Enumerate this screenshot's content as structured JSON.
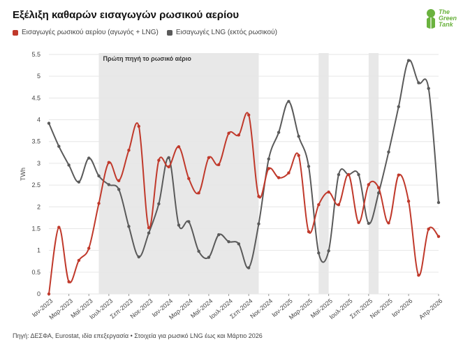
{
  "title": "Εξέλιξη καθαρών εισαγωγών ρωσικού αερίου",
  "source": "Πηγή: ΔΕΣΦΑ, Eurostat, ιδία επεξεργασία • Στοιχεία για ρωσικό LNG έως και Μάρτιο 2026",
  "logo": {
    "line1": "The",
    "line2": "Green",
    "line3": "Tank",
    "color": "#6ab23e"
  },
  "chart_data": {
    "type": "line",
    "title": "Εξέλιξη καθαρών εισαγωγών ρωσικού αερίου",
    "ylabel": "TWh",
    "xlabel": "",
    "ylim": [
      0,
      5.5
    ],
    "yticks": [
      0,
      0.5,
      1,
      1.5,
      2,
      2.5,
      3,
      3.5,
      4,
      4.5,
      5,
      5.5
    ],
    "ytick_labels": [
      "0",
      "0.5",
      "1",
      "1.5",
      "2",
      "2.5",
      "3",
      "3.5",
      "4",
      "4.5",
      "5",
      "5.5"
    ],
    "grid": true,
    "legend_position": "top-left",
    "x": [
      "2023-01",
      "2023-02",
      "2023-03",
      "2023-04",
      "2023-05",
      "2023-06",
      "2023-07",
      "2023-08",
      "2023-09",
      "2023-10",
      "2023-11",
      "2023-12",
      "2024-01",
      "2024-02",
      "2024-03",
      "2024-04",
      "2024-05",
      "2024-06",
      "2024-07",
      "2024-08",
      "2024-09",
      "2024-10",
      "2024-11",
      "2024-12",
      "2025-01",
      "2025-02",
      "2025-03",
      "2025-04",
      "2025-05",
      "2025-06",
      "2025-07",
      "2025-08",
      "2025-09",
      "2025-10",
      "2025-11",
      "2025-12",
      "2026-01",
      "2026-02",
      "2026-03",
      "2026-04"
    ],
    "x_tick_labels": [
      {
        "x": "2023-01",
        "label": "Ιαν-2023"
      },
      {
        "x": "2023-03",
        "label": "Μαρ-2023"
      },
      {
        "x": "2023-05",
        "label": "Μαϊ-2023"
      },
      {
        "x": "2023-07",
        "label": "Ιουλ-2023"
      },
      {
        "x": "2023-09",
        "label": "Σεπ-2023"
      },
      {
        "x": "2023-11",
        "label": "Νοε-2023"
      },
      {
        "x": "2024-01",
        "label": "Ιαν-2024"
      },
      {
        "x": "2024-03",
        "label": "Μαρ-2024"
      },
      {
        "x": "2024-05",
        "label": "Μαϊ-2024"
      },
      {
        "x": "2024-07",
        "label": "Ιουλ-2024"
      },
      {
        "x": "2024-09",
        "label": "Σεπ-2024"
      },
      {
        "x": "2024-11",
        "label": "Νοε-2024"
      },
      {
        "x": "2025-01",
        "label": "Ιαν-2025"
      },
      {
        "x": "2025-03",
        "label": "Μαρ-2025"
      },
      {
        "x": "2025-05",
        "label": "Μαϊ-2025"
      },
      {
        "x": "2025-07",
        "label": "Ιουλ-2025"
      },
      {
        "x": "2025-09",
        "label": "Σεπ-2025"
      },
      {
        "x": "2025-11",
        "label": "Νοε-2025"
      },
      {
        "x": "2026-01",
        "label": "Ιαν-2026"
      },
      {
        "x": "2026-04",
        "label": "Απρ-2026"
      }
    ],
    "series": [
      {
        "name": "Εισαγωγές ρωσικού αερίου (αγωγός + LNG)",
        "color": "#c0392b",
        "values": [
          0.0,
          1.53,
          0.28,
          0.77,
          1.05,
          2.08,
          3.02,
          2.6,
          3.3,
          3.85,
          1.52,
          3.07,
          2.92,
          3.38,
          2.65,
          2.32,
          3.13,
          2.97,
          3.69,
          3.65,
          4.11,
          2.24,
          2.88,
          2.67,
          2.78,
          3.18,
          1.43,
          2.05,
          2.34,
          2.05,
          2.74,
          1.64,
          2.51,
          2.44,
          1.63,
          2.73,
          2.13,
          0.43,
          1.49,
          1.32
        ]
      },
      {
        "name": "Εισαγωγές LNG (εκτός ρωσικού)",
        "color": "#5a5a5a",
        "values": [
          3.92,
          3.39,
          2.96,
          2.57,
          3.12,
          2.71,
          2.51,
          2.4,
          1.55,
          0.85,
          1.4,
          2.07,
          3.13,
          1.58,
          1.66,
          0.98,
          0.84,
          1.36,
          1.2,
          1.15,
          0.6,
          1.61,
          3.1,
          3.71,
          4.42,
          3.62,
          2.93,
          0.94,
          0.99,
          2.74,
          2.74,
          2.74,
          1.62,
          2.32,
          3.26,
          4.3,
          5.36,
          4.85,
          4.72,
          2.1
        ]
      }
    ],
    "annotations": [
      {
        "type": "shaded_range",
        "from": "2023-06",
        "to": "2024-10",
        "label": "Πρώτη πηγή το ρωσικό αέριο"
      },
      {
        "type": "shaded_range",
        "from": "2025-04",
        "to": "2025-05",
        "label": ""
      },
      {
        "type": "shaded_range",
        "from": "2025-09",
        "to": "2025-10",
        "label": ""
      }
    ],
    "colors": {
      "grid": "#e6e6e6",
      "shade": "#e8e8e8",
      "axis_text": "#444444"
    }
  }
}
